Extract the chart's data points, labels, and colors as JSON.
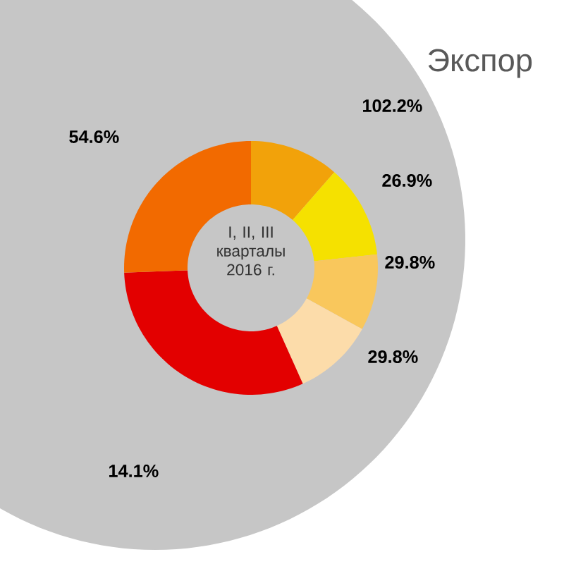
{
  "chart_data": {
    "type": "donut",
    "title": "Экспор",
    "categories": [
      null,
      null,
      null,
      null,
      null,
      null
    ],
    "values": [
      11.4,
      11.9,
      9.7,
      10.3,
      31.1,
      25.6
    ],
    "colors": [
      "#f2a20a",
      "#f5e100",
      "#f9c75c",
      "#fcdcaa",
      "#e30000",
      "#f26a00"
    ],
    "annotations": [
      "I, II, III кварталы 2016 г.",
      "102.2%",
      "54.6%",
      "26.9%",
      "29.8%",
      "29.8%",
      "14.1%"
    ]
  }
}
